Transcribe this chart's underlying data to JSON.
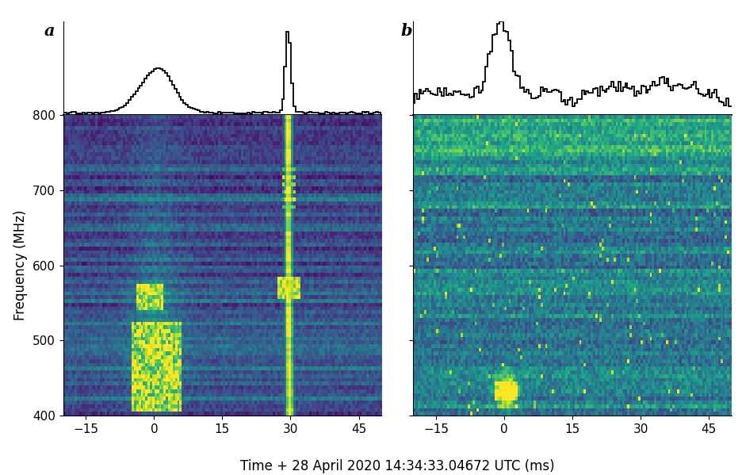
{
  "xlabel": "Time + 28 April 2020 14:34:33.04672 UTC (ms)",
  "ylabel": "Frequency (MHz)",
  "freq_min": 400,
  "freq_max": 800,
  "time_min": -20,
  "time_max": 50,
  "xticks": [
    -15,
    0,
    15,
    30,
    45
  ],
  "yticks": [
    400,
    500,
    600,
    700,
    800
  ],
  "panel_a_label": "a",
  "panel_b_label": "b",
  "n_freq_bins": 80,
  "n_time_bins": 140,
  "seed_a": 7,
  "seed_b": 13,
  "background_color": "white"
}
